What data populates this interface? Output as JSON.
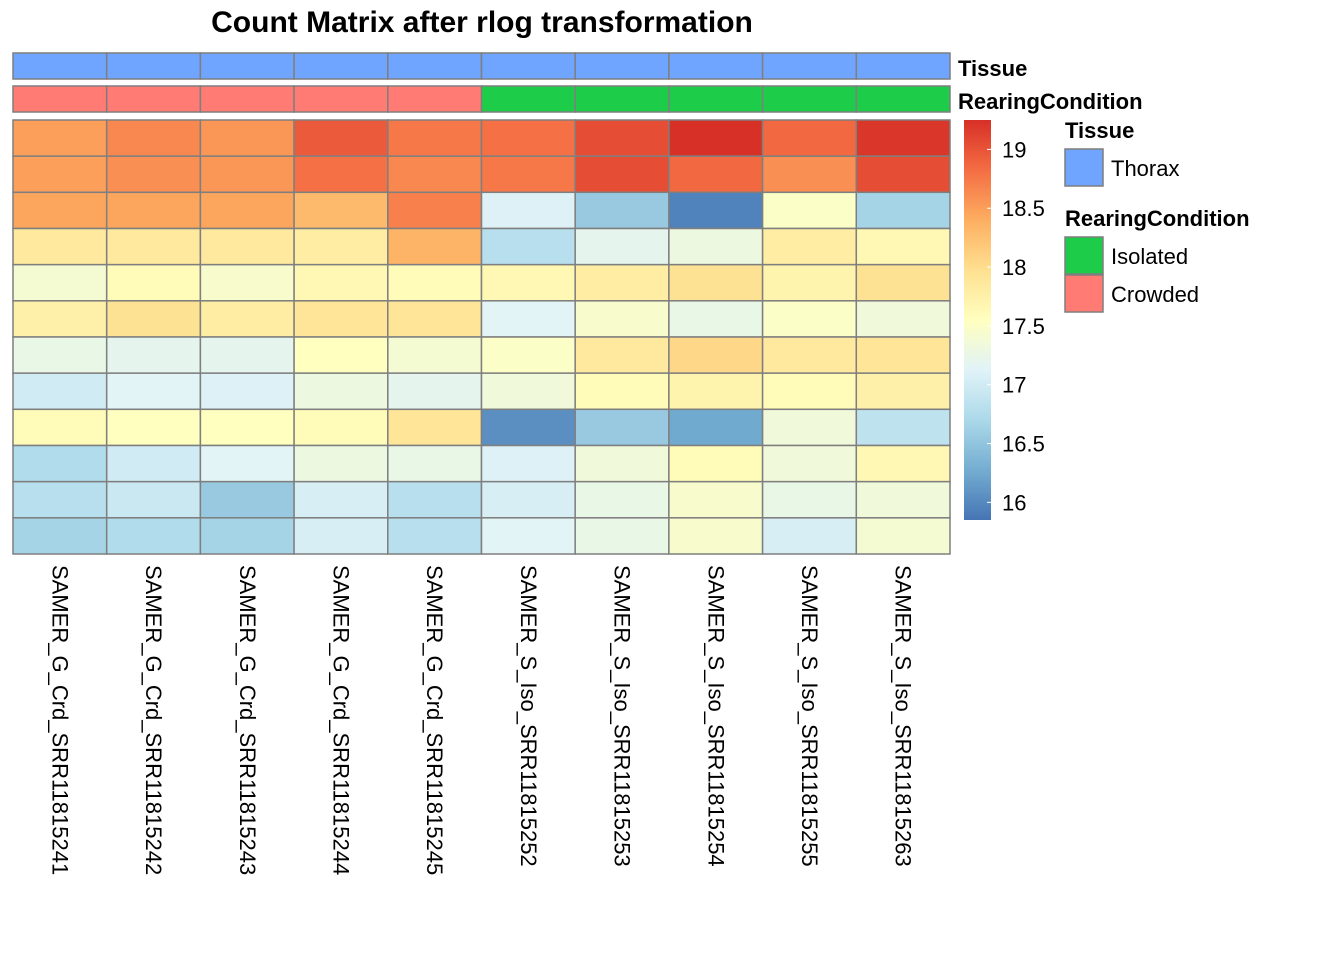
{
  "chart_data": {
    "type": "heatmap",
    "title": "Count Matrix after rlog transformation",
    "columns": [
      "SAMER_G_Crd_SRR11815241",
      "SAMER_G_Crd_SRR11815242",
      "SAMER_G_Crd_SRR11815243",
      "SAMER_G_Crd_SRR11815244",
      "SAMER_G_Crd_SRR11815245",
      "SAMER_S_Iso_SRR11815252",
      "SAMER_S_Iso_SRR11815253",
      "SAMER_S_Iso_SRR11815254",
      "SAMER_S_Iso_SRR11815255",
      "SAMER_S_Iso_SRR11815263"
    ],
    "annotations": [
      {
        "name": "Tissue",
        "values": [
          "Thorax",
          "Thorax",
          "Thorax",
          "Thorax",
          "Thorax",
          "Thorax",
          "Thorax",
          "Thorax",
          "Thorax",
          "Thorax"
        ]
      },
      {
        "name": "RearingCondition",
        "values": [
          "Crowded",
          "Crowded",
          "Crowded",
          "Crowded",
          "Crowded",
          "Isolated",
          "Isolated",
          "Isolated",
          "Isolated",
          "Isolated"
        ]
      }
    ],
    "values": [
      [
        18.5,
        18.65,
        18.55,
        18.95,
        18.75,
        18.8,
        19.05,
        19.25,
        18.85,
        19.2
      ],
      [
        18.5,
        18.6,
        18.55,
        18.8,
        18.65,
        18.75,
        19.05,
        18.85,
        18.6,
        19.05
      ],
      [
        18.45,
        18.45,
        18.45,
        18.3,
        18.7,
        17.1,
        16.55,
        15.95,
        17.5,
        16.65
      ],
      [
        17.85,
        17.85,
        17.85,
        17.8,
        18.35,
        16.8,
        17.2,
        17.3,
        17.8,
        17.65
      ],
      [
        17.4,
        17.6,
        17.45,
        17.65,
        17.6,
        17.65,
        17.8,
        17.95,
        17.7,
        17.95
      ],
      [
        17.75,
        17.95,
        17.8,
        17.9,
        17.9,
        17.15,
        17.45,
        17.25,
        17.5,
        17.35
      ],
      [
        17.25,
        17.2,
        17.2,
        17.55,
        17.4,
        17.5,
        17.85,
        18.05,
        17.85,
        17.9
      ],
      [
        17.0,
        17.15,
        17.1,
        17.3,
        17.2,
        17.35,
        17.6,
        17.7,
        17.6,
        17.75
      ],
      [
        17.6,
        17.55,
        17.55,
        17.6,
        17.9,
        16.05,
        16.55,
        16.25,
        17.35,
        16.85
      ],
      [
        16.75,
        17.0,
        17.15,
        17.3,
        17.25,
        17.1,
        17.35,
        17.6,
        17.35,
        17.65
      ],
      [
        16.8,
        16.95,
        16.55,
        17.05,
        16.8,
        17.05,
        17.25,
        17.45,
        17.25,
        17.35
      ],
      [
        16.65,
        16.75,
        16.65,
        17.05,
        16.8,
        17.15,
        17.25,
        17.45,
        17.05,
        17.4
      ]
    ],
    "color_scale": {
      "min": 15.85,
      "max": 19.25,
      "ticks": [
        "16",
        "16.5",
        "17",
        "17.5",
        "18",
        "18.5",
        "19"
      ],
      "tick_values": [
        16,
        16.5,
        17,
        17.5,
        18,
        18.5,
        19
      ],
      "stops": [
        "#4575B4",
        "#74ADD1",
        "#ABD9E9",
        "#E0F3F8",
        "#FFFFBF",
        "#FEE090",
        "#FDAE61",
        "#F46D43",
        "#D73027"
      ]
    },
    "legend": [
      {
        "title": "Tissue",
        "entries": [
          {
            "label": "Thorax",
            "color": "#6FA4FF"
          }
        ]
      },
      {
        "title": "RearingCondition",
        "entries": [
          {
            "label": "Isolated",
            "color": "#1DCD4A"
          },
          {
            "label": "Crowded",
            "color": "#FF7B74"
          }
        ]
      }
    ],
    "grid_color": "#7F7F7F"
  }
}
